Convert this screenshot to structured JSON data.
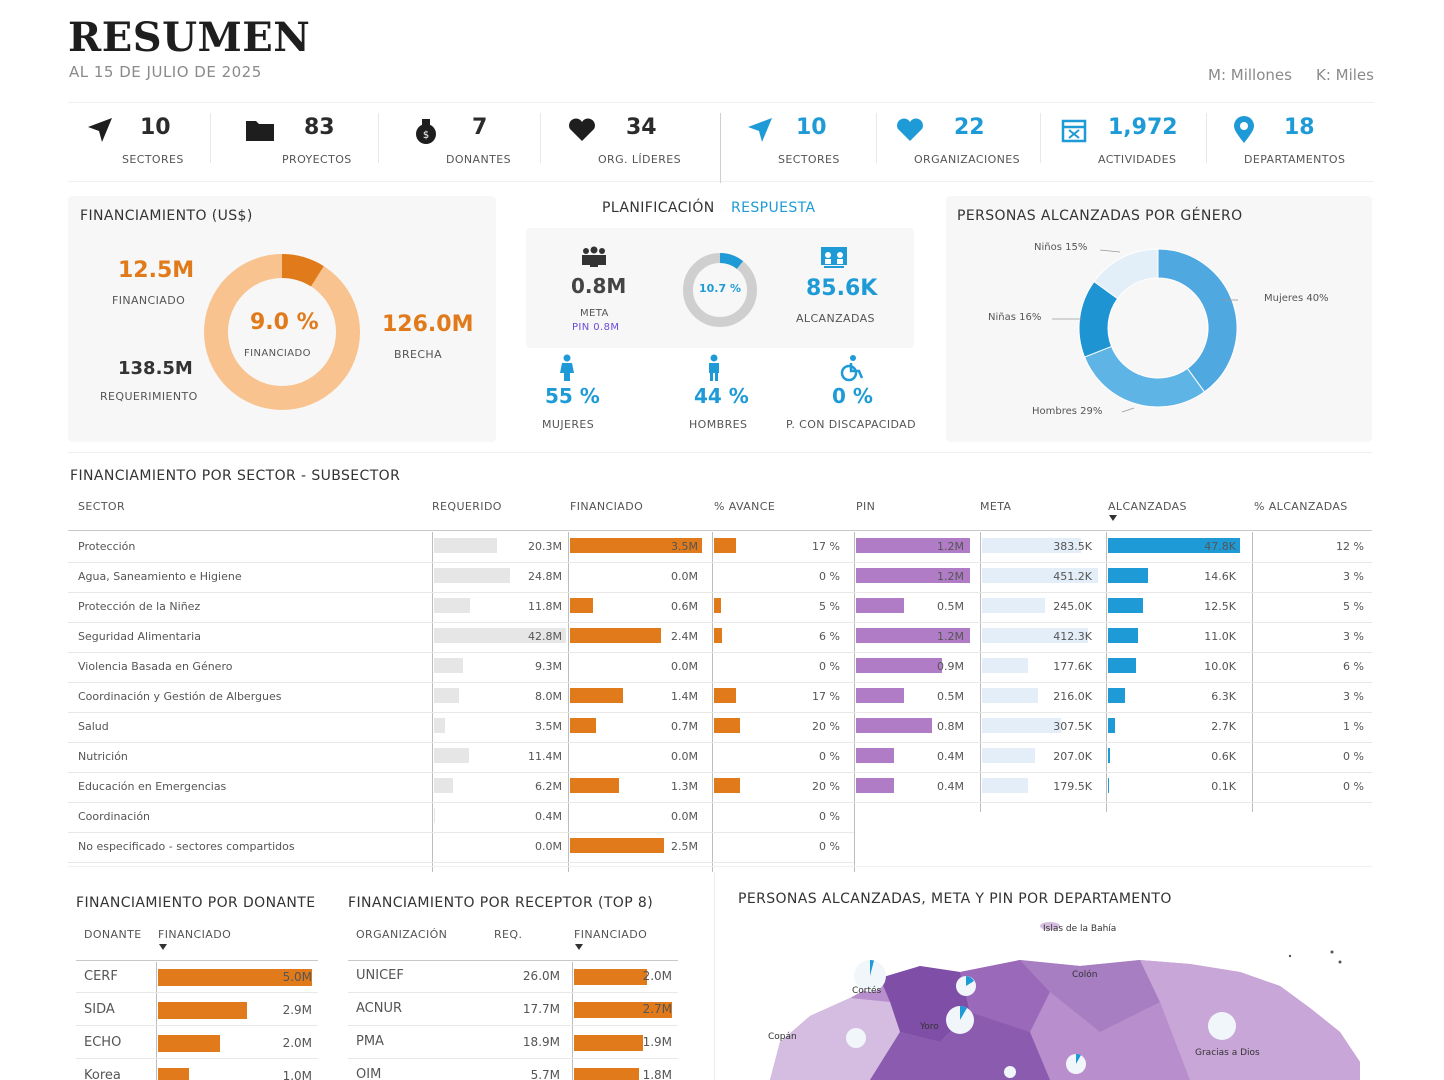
{
  "header": {
    "title": "RESUMEN",
    "subtitle": "AL 15 DE JULIO DE 2025",
    "legend_m": "M: Millones",
    "legend_k": "K: Miles"
  },
  "kpis_planning": [
    {
      "value": "10",
      "label": "SECTORES",
      "icon": "send-icon"
    },
    {
      "value": "83",
      "label": "PROYECTOS",
      "icon": "folder-icon"
    },
    {
      "value": "7",
      "label": "DONANTES",
      "icon": "money-bag-icon"
    },
    {
      "value": "34",
      "label": "ORG. LÍDERES",
      "icon": "handshake-heart-icon"
    }
  ],
  "kpis_response": [
    {
      "value": "10",
      "label": "SECTORES",
      "icon": "send-icon"
    },
    {
      "value": "22",
      "label": "ORGANIZACIONES",
      "icon": "handshake-heart-icon"
    },
    {
      "value": "1,972",
      "label": "ACTIVIDADES",
      "icon": "calendar-icon"
    },
    {
      "value": "18",
      "label": "DEPARTAMENTOS",
      "icon": "location-pin-icon"
    }
  ],
  "funding": {
    "title": "FINANCIAMIENTO (US$)",
    "funded_value": "12.5M",
    "funded_label": "FINANCIADO",
    "required_value": "138.5M",
    "required_label": "REQUERIMIENTO",
    "pct_value": "9.0 %",
    "pct_label": "FINANCIADO",
    "gap_value": "126.0M",
    "gap_label": "BRECHA",
    "funded_fraction": 0.09,
    "color_funded": "#e07a1a",
    "color_gap": "#f8c38f"
  },
  "toggle": {
    "planning": "PLANIFICACIÓN",
    "response": "RESPUESTA"
  },
  "response_summary": {
    "meta_value": "0.8M",
    "meta_label": "META",
    "pin_label": "PIN 0.8M",
    "pct_value": "10.7 %",
    "pct_fraction": 0.107,
    "reached_value": "85.6K",
    "reached_label": "ALCANZADAS",
    "women_value": "55 %",
    "women_label": "MUJERES",
    "men_value": "44 %",
    "men_label": "HOMBRES",
    "disab_value": "0 %",
    "disab_label": "P. CON DISCAPACIDAD"
  },
  "gender": {
    "title": "PERSONAS ALCANZADAS POR GÉNERO",
    "slices": [
      {
        "label": "Mujeres 40%",
        "value": 40,
        "color": "#4fa8df"
      },
      {
        "label": "Hombres 29%",
        "value": 29,
        "color": "#5fb4e6"
      },
      {
        "label": "Niñas 16%",
        "value": 16,
        "color": "#1f94d2"
      },
      {
        "label": "Niños 15%",
        "value": 15,
        "color": "#e3eff8"
      }
    ]
  },
  "sector_table": {
    "title": "FINANCIAMIENTO POR SECTOR - SUBSECTOR",
    "headers": {
      "sector": "SECTOR",
      "required": "REQUERIDO",
      "funded": "FINANCIADO",
      "progress": "% AVANCE",
      "pin": "PIN",
      "meta": "META",
      "reached": "ALCANZADAS",
      "pct_reached": "% ALCANZADAS"
    },
    "rows": [
      {
        "sector": "Protección",
        "req": 20.3,
        "req_l": "20.3M",
        "fin": 3.5,
        "fin_l": "3.5M",
        "av": 17,
        "av_l": "17 %",
        "pin": 1.2,
        "pin_l": "1.2M",
        "meta": 383.5,
        "meta_l": "383.5K",
        "alc": 47.8,
        "alc_l": "47.8K",
        "pa_l": "12 %"
      },
      {
        "sector": "Agua, Saneamiento e Higiene",
        "req": 24.8,
        "req_l": "24.8M",
        "fin": 0,
        "fin_l": "0.0M",
        "av": 0,
        "av_l": "0 %",
        "pin": 1.2,
        "pin_l": "1.2M",
        "meta": 451.2,
        "meta_l": "451.2K",
        "alc": 14.6,
        "alc_l": "14.6K",
        "pa_l": "3 %"
      },
      {
        "sector": "Protección de la Niñez",
        "req": 11.8,
        "req_l": "11.8M",
        "fin": 0.6,
        "fin_l": "0.6M",
        "av": 5,
        "av_l": "5 %",
        "pin": 0.5,
        "pin_l": "0.5M",
        "meta": 245.0,
        "meta_l": "245.0K",
        "alc": 12.5,
        "alc_l": "12.5K",
        "pa_l": "5 %"
      },
      {
        "sector": "Seguridad Alimentaria",
        "req": 42.8,
        "req_l": "42.8M",
        "fin": 2.4,
        "fin_l": "2.4M",
        "av": 6,
        "av_l": "6 %",
        "pin": 1.2,
        "pin_l": "1.2M",
        "meta": 412.3,
        "meta_l": "412.3K",
        "alc": 11.0,
        "alc_l": "11.0K",
        "pa_l": "3 %"
      },
      {
        "sector": "Violencia Basada en Género",
        "req": 9.3,
        "req_l": "9.3M",
        "fin": 0,
        "fin_l": "0.0M",
        "av": 0,
        "av_l": "0 %",
        "pin": 0.9,
        "pin_l": "0.9M",
        "meta": 177.6,
        "meta_l": "177.6K",
        "alc": 10.0,
        "alc_l": "10.0K",
        "pa_l": "6 %"
      },
      {
        "sector": "Coordinación y Gestión de Albergues",
        "req": 8.0,
        "req_l": "8.0M",
        "fin": 1.4,
        "fin_l": "1.4M",
        "av": 17,
        "av_l": "17 %",
        "pin": 0.5,
        "pin_l": "0.5M",
        "meta": 216.0,
        "meta_l": "216.0K",
        "alc": 6.3,
        "alc_l": "6.3K",
        "pa_l": "3 %"
      },
      {
        "sector": "Salud",
        "req": 3.5,
        "req_l": "3.5M",
        "fin": 0.7,
        "fin_l": "0.7M",
        "av": 20,
        "av_l": "20 %",
        "pin": 0.8,
        "pin_l": "0.8M",
        "meta": 307.5,
        "meta_l": "307.5K",
        "alc": 2.7,
        "alc_l": "2.7K",
        "pa_l": "1 %"
      },
      {
        "sector": "Nutrición",
        "req": 11.4,
        "req_l": "11.4M",
        "fin": 0,
        "fin_l": "0.0M",
        "av": 0,
        "av_l": "0 %",
        "pin": 0.4,
        "pin_l": "0.4M",
        "meta": 207.0,
        "meta_l": "207.0K",
        "alc": 0.6,
        "alc_l": "0.6K",
        "pa_l": "0 %"
      },
      {
        "sector": "Educación en Emergencias",
        "req": 6.2,
        "req_l": "6.2M",
        "fin": 1.3,
        "fin_l": "1.3M",
        "av": 20,
        "av_l": "20 %",
        "pin": 0.4,
        "pin_l": "0.4M",
        "meta": 179.5,
        "meta_l": "179.5K",
        "alc": 0.1,
        "alc_l": "0.1K",
        "pa_l": "0 %"
      },
      {
        "sector": "Coordinación",
        "req": 0.4,
        "req_l": "0.4M",
        "fin": 0,
        "fin_l": "0.0M",
        "av": 0,
        "av_l": "0 %"
      },
      {
        "sector": "No especificado - sectores compartidos",
        "req": 0,
        "req_l": "0.0M",
        "fin": 2.5,
        "fin_l": "2.5M",
        "av": 0,
        "av_l": "0 %"
      }
    ]
  },
  "donor_table": {
    "title": "FINANCIAMIENTO POR DONANTE",
    "h_donor": "DONANTE",
    "h_funded": "FINANCIADO",
    "rows": [
      {
        "name": "CERF",
        "value": 5.0,
        "label": "5.0M"
      },
      {
        "name": "SIDA",
        "value": 2.9,
        "label": "2.9M"
      },
      {
        "name": "ECHO",
        "value": 2.0,
        "label": "2.0M"
      },
      {
        "name": "Korea",
        "value": 1.0,
        "label": "1.0M"
      }
    ]
  },
  "recipient_table": {
    "title": "FINANCIAMIENTO POR RECEPTOR (TOP 8)",
    "h_org": "ORGANIZACIÓN",
    "h_req": "REQ.",
    "h_funded": "FINANCIADO",
    "rows": [
      {
        "name": "UNICEF",
        "req": "26.0M",
        "value": 2.0,
        "label": "2.0M"
      },
      {
        "name": "ACNUR",
        "req": "17.7M",
        "value": 2.7,
        "label": "2.7M"
      },
      {
        "name": "PMA",
        "req": "18.9M",
        "value": 1.9,
        "label": "1.9M"
      },
      {
        "name": "OIM",
        "req": "5.7M",
        "value": 1.8,
        "label": "1.8M"
      }
    ]
  },
  "map": {
    "title": "PERSONAS ALCANZADAS, META Y PIN POR DEPARTAMENTO",
    "labels": [
      "Islas de la Bahía",
      "Cortés",
      "Colón",
      "Yoro",
      "Copán",
      "Gracias a Dios"
    ]
  },
  "colors": {
    "orange": "#e07a1a",
    "light_orange": "#f8c38f",
    "blue": "#1e9bd7",
    "purple": "#b07cc6",
    "light_gray": "#e6e6e6",
    "light_blue": "#e3eef8"
  }
}
